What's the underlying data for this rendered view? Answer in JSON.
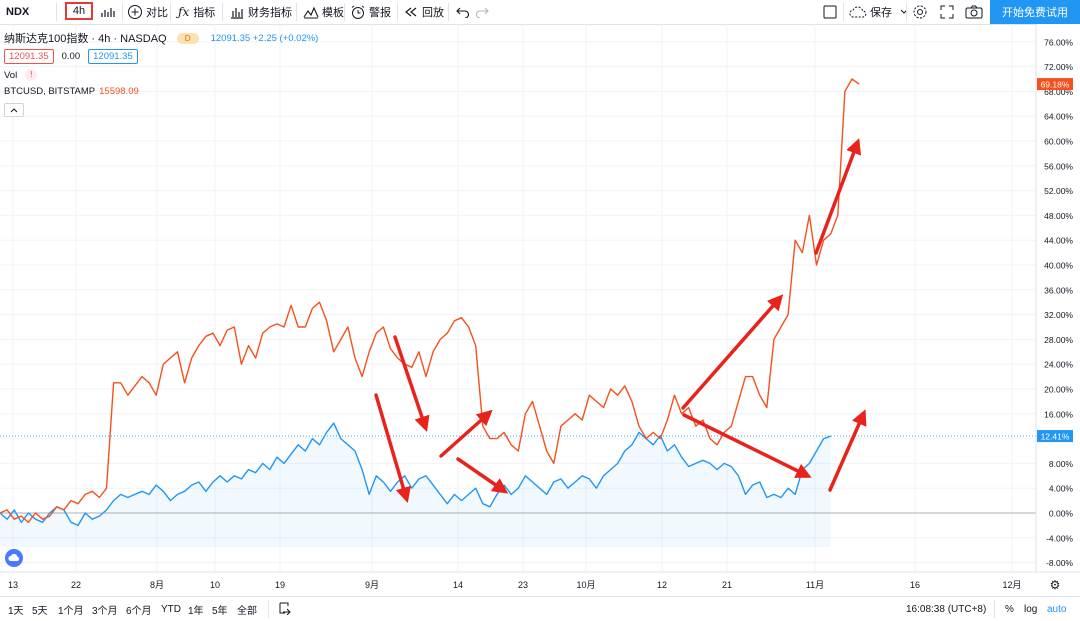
{
  "toolbar": {
    "symbol": "NDX",
    "interval": "4h",
    "compare_label": "对比",
    "indicators_label": "指标",
    "financials_label": "财务指标",
    "templates_label": "模板",
    "alert_label": "警报",
    "replay_label": "回放",
    "save_label": "保存",
    "cta_label": "开始免费试用"
  },
  "legend": {
    "main_title": "纳斯达克100指数 · 4h · NASDAQ",
    "d_badge": "D",
    "header_price": "12091.35 +2.25 (+0.02%)",
    "bid": "12091.35",
    "spread": "0.00",
    "ask": "12091.35",
    "vol_label": "Vol",
    "vol_badge": "!",
    "compare_label": "BTCUSD, BITSTAMP",
    "compare_value": "15598.09"
  },
  "colors": {
    "ndx": "#2196f3",
    "btc": "#f4511e",
    "arrow": "#e8231c",
    "grid": "#f0f3fa",
    "accent": "#2196f3"
  },
  "chart_data": {
    "type": "line",
    "x_labels": [
      "13",
      "22",
      "8月",
      "10",
      "19",
      "9月",
      "14",
      "23",
      "10月",
      "12",
      "21",
      "11月",
      "16",
      "12月"
    ],
    "y_ticks": [
      "76.00%",
      "72.00%",
      "68.00%",
      "64.00%",
      "60.00%",
      "56.00%",
      "52.00%",
      "48.00%",
      "44.00%",
      "40.00%",
      "36.00%",
      "32.00%",
      "28.00%",
      "24.00%",
      "20.00%",
      "16.00%",
      "12.00%",
      "8.00%",
      "4.00%",
      "0.00%",
      "-4.00%",
      "-8.00%"
    ],
    "ylim": [
      -8,
      76
    ],
    "series": [
      {
        "name": "纳斯达克100指数",
        "last_value": "12.41%",
        "points": [
          [
            0,
            0
          ],
          [
            2,
            -1
          ],
          [
            4,
            0.5
          ],
          [
            6,
            -1.5
          ],
          [
            8,
            0
          ],
          [
            10,
            -1
          ],
          [
            12,
            -1.5
          ],
          [
            14,
            0
          ],
          [
            16,
            1
          ],
          [
            18,
            0.5
          ],
          [
            20,
            -1.5
          ],
          [
            22,
            -2
          ],
          [
            24,
            0
          ],
          [
            26,
            -1
          ],
          [
            28,
            -0.5
          ],
          [
            30,
            0.5
          ],
          [
            32,
            2
          ],
          [
            34,
            3
          ],
          [
            36,
            2.5
          ],
          [
            38,
            3
          ],
          [
            40,
            3.5
          ],
          [
            42,
            3
          ],
          [
            44,
            4.5
          ],
          [
            46,
            3.5
          ],
          [
            48,
            2
          ],
          [
            50,
            3
          ],
          [
            52,
            3.5
          ],
          [
            54,
            4.5
          ],
          [
            56,
            5
          ],
          [
            58,
            3.5
          ],
          [
            60,
            5
          ],
          [
            62,
            6
          ],
          [
            64,
            5
          ],
          [
            66,
            6
          ],
          [
            68,
            5.5
          ],
          [
            70,
            7
          ],
          [
            72,
            6.5
          ],
          [
            74,
            8
          ],
          [
            76,
            7
          ],
          [
            78,
            9
          ],
          [
            80,
            8
          ],
          [
            82,
            9.5
          ],
          [
            84,
            11
          ],
          [
            86,
            10
          ],
          [
            88,
            12
          ],
          [
            90,
            11
          ],
          [
            92,
            13
          ],
          [
            94,
            14.5
          ],
          [
            96,
            12
          ],
          [
            98,
            11
          ],
          [
            100,
            10
          ],
          [
            102,
            7
          ],
          [
            104,
            3
          ],
          [
            106,
            6
          ],
          [
            108,
            5
          ],
          [
            110,
            3.5
          ],
          [
            112,
            5
          ],
          [
            114,
            6
          ],
          [
            116,
            4
          ],
          [
            118,
            5.5
          ],
          [
            120,
            6
          ],
          [
            122,
            4.5
          ],
          [
            124,
            3
          ],
          [
            126,
            1.5
          ],
          [
            128,
            3
          ],
          [
            130,
            2
          ],
          [
            132,
            3
          ],
          [
            134,
            4
          ],
          [
            136,
            1.5
          ],
          [
            138,
            1
          ],
          [
            140,
            3
          ],
          [
            142,
            4.5
          ],
          [
            144,
            3
          ],
          [
            146,
            4
          ],
          [
            148,
            6
          ],
          [
            150,
            5
          ],
          [
            152,
            4
          ],
          [
            154,
            3
          ],
          [
            156,
            5
          ],
          [
            158,
            5.5
          ],
          [
            160,
            4
          ],
          [
            162,
            5
          ],
          [
            164,
            6
          ],
          [
            166,
            5.5
          ],
          [
            168,
            4
          ],
          [
            170,
            6
          ],
          [
            172,
            7
          ],
          [
            174,
            8
          ],
          [
            176,
            10
          ],
          [
            178,
            11
          ],
          [
            180,
            13
          ],
          [
            182,
            12
          ],
          [
            184,
            11
          ],
          [
            186,
            12.5
          ],
          [
            188,
            10
          ],
          [
            190,
            11
          ],
          [
            192,
            9
          ],
          [
            194,
            7.5
          ],
          [
            196,
            8
          ],
          [
            198,
            8.5
          ],
          [
            200,
            8
          ],
          [
            202,
            7
          ],
          [
            204,
            8
          ],
          [
            206,
            7.5
          ],
          [
            208,
            6
          ],
          [
            210,
            3
          ],
          [
            212,
            4.5
          ],
          [
            214,
            5
          ],
          [
            216,
            2.5
          ],
          [
            218,
            3
          ],
          [
            220,
            2.5
          ],
          [
            222,
            4
          ],
          [
            224,
            3
          ],
          [
            226,
            7
          ],
          [
            228,
            8
          ],
          [
            230,
            10
          ],
          [
            232,
            12
          ],
          [
            234,
            12.4
          ]
        ]
      },
      {
        "name": "BTCUSD, BITSTAMP",
        "last_value": "69.18%",
        "points": [
          [
            0,
            0
          ],
          [
            2,
            0.5
          ],
          [
            4,
            -1
          ],
          [
            6,
            -0.5
          ],
          [
            8,
            -1.5
          ],
          [
            10,
            0
          ],
          [
            12,
            -1
          ],
          [
            14,
            -0.5
          ],
          [
            16,
            1
          ],
          [
            18,
            0.5
          ],
          [
            20,
            2
          ],
          [
            22,
            1.5
          ],
          [
            24,
            3
          ],
          [
            26,
            3.5
          ],
          [
            28,
            2.5
          ],
          [
            30,
            4
          ],
          [
            32,
            21
          ],
          [
            34,
            21
          ],
          [
            36,
            19
          ],
          [
            38,
            20.5
          ],
          [
            40,
            22
          ],
          [
            42,
            21
          ],
          [
            44,
            19
          ],
          [
            46,
            24
          ],
          [
            48,
            25
          ],
          [
            50,
            26
          ],
          [
            52,
            21
          ],
          [
            54,
            25
          ],
          [
            56,
            27
          ],
          [
            58,
            28.5
          ],
          [
            60,
            29
          ],
          [
            62,
            27
          ],
          [
            64,
            29.5
          ],
          [
            66,
            30
          ],
          [
            68,
            24
          ],
          [
            70,
            27
          ],
          [
            72,
            25
          ],
          [
            74,
            29
          ],
          [
            76,
            30
          ],
          [
            78,
            30.5
          ],
          [
            80,
            30
          ],
          [
            82,
            33.5
          ],
          [
            84,
            30
          ],
          [
            86,
            30
          ],
          [
            88,
            33
          ],
          [
            90,
            34
          ],
          [
            92,
            31
          ],
          [
            94,
            26
          ],
          [
            96,
            28
          ],
          [
            98,
            30
          ],
          [
            100,
            25
          ],
          [
            102,
            22
          ],
          [
            104,
            26
          ],
          [
            106,
            29
          ],
          [
            108,
            30
          ],
          [
            110,
            26.5
          ],
          [
            112,
            25
          ],
          [
            114,
            24
          ],
          [
            116,
            23.5
          ],
          [
            118,
            26
          ],
          [
            120,
            22
          ],
          [
            122,
            26
          ],
          [
            124,
            28
          ],
          [
            126,
            29
          ],
          [
            128,
            31
          ],
          [
            130,
            31.5
          ],
          [
            132,
            30
          ],
          [
            134,
            27
          ],
          [
            136,
            14
          ],
          [
            138,
            12
          ],
          [
            140,
            12
          ],
          [
            142,
            13
          ],
          [
            144,
            11
          ],
          [
            146,
            10
          ],
          [
            148,
            16
          ],
          [
            150,
            18
          ],
          [
            152,
            14
          ],
          [
            154,
            10
          ],
          [
            156,
            8
          ],
          [
            158,
            14
          ],
          [
            160,
            15
          ],
          [
            162,
            16
          ],
          [
            164,
            15
          ],
          [
            166,
            19
          ],
          [
            168,
            18
          ],
          [
            170,
            17
          ],
          [
            172,
            20
          ],
          [
            174,
            19
          ],
          [
            176,
            20.5
          ],
          [
            178,
            18
          ],
          [
            180,
            14
          ],
          [
            182,
            12
          ],
          [
            184,
            13
          ],
          [
            186,
            12
          ],
          [
            188,
            15
          ],
          [
            190,
            19
          ],
          [
            192,
            16
          ],
          [
            194,
            17
          ],
          [
            196,
            14
          ],
          [
            198,
            15
          ],
          [
            200,
            12
          ],
          [
            202,
            11
          ],
          [
            204,
            13
          ],
          [
            206,
            14
          ],
          [
            208,
            18
          ],
          [
            210,
            22
          ],
          [
            212,
            22
          ],
          [
            214,
            19
          ],
          [
            216,
            17
          ],
          [
            218,
            28
          ],
          [
            220,
            30
          ],
          [
            222,
            32
          ],
          [
            224,
            44
          ],
          [
            226,
            42
          ],
          [
            228,
            48
          ],
          [
            230,
            40
          ],
          [
            232,
            44
          ],
          [
            234,
            45
          ],
          [
            236,
            48
          ],
          [
            238,
            68
          ],
          [
            240,
            70
          ],
          [
            242,
            69.18
          ]
        ]
      }
    ],
    "grid": true,
    "price_scale": "percent",
    "scale_options": [
      "%",
      "log",
      "auto"
    ]
  },
  "bottom": {
    "ranges": [
      "1天",
      "5天",
      "1个月",
      "3个月",
      "6个月",
      "YTD",
      "1年",
      "5年",
      "全部"
    ],
    "clock": "16:08:38 (UTC+8)",
    "percent": "%",
    "log": "log",
    "auto": "auto"
  }
}
